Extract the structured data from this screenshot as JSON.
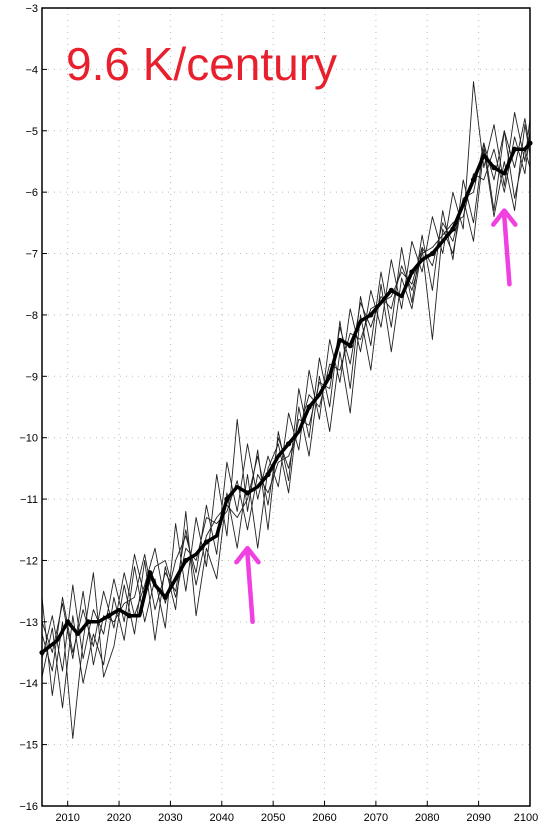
{
  "chart_data": {
    "type": "line",
    "annotation": "9.6 K/century",
    "xlim": [
      2005,
      2100
    ],
    "ylim": [
      -16,
      -3
    ],
    "x_ticks": [
      2010,
      2020,
      2030,
      2040,
      2050,
      2060,
      2070,
      2080,
      2090,
      2100
    ],
    "x_tick_labels": [
      "2010",
      "2020",
      "2030",
      "2040",
      "2050",
      "2060",
      "2070",
      "2080",
      "2090",
      "2100"
    ],
    "y_ticks": [
      -16,
      -15,
      -14,
      -13,
      -12,
      -11,
      -10,
      -9,
      -8,
      -7,
      -6,
      -5,
      -4,
      -3
    ],
    "y_tick_labels": [
      "−16",
      "−15",
      "−14",
      "−13",
      "−12",
      "−11",
      "−10",
      "−9",
      "−8",
      "−7",
      "−6",
      "−5",
      "−4",
      "−3"
    ],
    "grid": true,
    "ensemble_mean": {
      "x": [
        2005,
        2008,
        2010,
        2012,
        2014,
        2016,
        2018,
        2020,
        2022,
        2024,
        2026,
        2027,
        2029,
        2031,
        2033,
        2035,
        2037,
        2039,
        2041,
        2043,
        2045,
        2047,
        2049,
        2051,
        2053,
        2055,
        2057,
        2059,
        2061,
        2063,
        2065,
        2067,
        2069,
        2071,
        2073,
        2075,
        2077,
        2079,
        2081,
        2083,
        2085,
        2087,
        2089,
        2091,
        2093,
        2095,
        2097,
        2099,
        2100
      ],
      "y": [
        -13.5,
        -13.3,
        -13.0,
        -13.2,
        -13.0,
        -13.0,
        -12.9,
        -12.8,
        -12.9,
        -12.9,
        -12.2,
        -12.4,
        -12.6,
        -12.3,
        -12.0,
        -11.9,
        -11.7,
        -11.6,
        -11.0,
        -10.8,
        -10.9,
        -10.8,
        -10.6,
        -10.3,
        -10.1,
        -9.9,
        -9.5,
        -9.3,
        -9.0,
        -8.4,
        -8.5,
        -8.1,
        -8.0,
        -7.8,
        -7.6,
        -7.7,
        -7.3,
        -7.1,
        -7.0,
        -6.8,
        -6.6,
        -6.2,
        -5.8,
        -5.4,
        -5.6,
        -5.7,
        -5.3,
        -5.3,
        -5.2
      ]
    },
    "ensemble_members": [
      {
        "x": [
          2005,
          2007,
          2009,
          2011,
          2013,
          2015,
          2017,
          2019,
          2021,
          2023,
          2025,
          2027,
          2029,
          2031,
          2033,
          2035,
          2037,
          2039,
          2041,
          2043,
          2045,
          2047,
          2049,
          2051,
          2053,
          2055,
          2057,
          2059,
          2061,
          2063,
          2065,
          2067,
          2069,
          2071,
          2073,
          2075,
          2077,
          2079,
          2081,
          2083,
          2085,
          2087,
          2089,
          2091,
          2093,
          2095,
          2097,
          2099,
          2100
        ],
        "y": [
          -13.2,
          -13.8,
          -12.6,
          -13.5,
          -12.8,
          -13.4,
          -12.5,
          -13.1,
          -12.2,
          -12.9,
          -12.4,
          -11.8,
          -12.7,
          -12.0,
          -11.6,
          -12.2,
          -11.1,
          -11.9,
          -10.4,
          -11.2,
          -10.1,
          -11.0,
          -10.3,
          -10.8,
          -9.6,
          -10.2,
          -8.9,
          -9.7,
          -8.4,
          -9.1,
          -7.9,
          -8.6,
          -7.6,
          -8.2,
          -7.1,
          -7.9,
          -6.8,
          -7.3,
          -6.4,
          -7.0,
          -6.0,
          -6.6,
          -4.2,
          -5.6,
          -4.9,
          -5.9,
          -4.7,
          -5.5,
          -4.8
        ]
      },
      {
        "x": [
          2005,
          2007,
          2009,
          2011,
          2013,
          2015,
          2017,
          2019,
          2021,
          2023,
          2025,
          2027,
          2029,
          2031,
          2033,
          2035,
          2037,
          2039,
          2041,
          2043,
          2045,
          2047,
          2049,
          2051,
          2053,
          2055,
          2057,
          2059,
          2061,
          2063,
          2065,
          2067,
          2069,
          2071,
          2073,
          2075,
          2077,
          2079,
          2081,
          2083,
          2085,
          2087,
          2089,
          2091,
          2093,
          2095,
          2097,
          2099,
          2100
        ],
        "y": [
          -13.9,
          -13.1,
          -14.4,
          -12.9,
          -14.0,
          -13.2,
          -13.7,
          -12.6,
          -13.3,
          -12.1,
          -13.0,
          -12.3,
          -13.1,
          -11.4,
          -12.5,
          -11.3,
          -12.1,
          -10.6,
          -11.6,
          -9.7,
          -11.2,
          -10.2,
          -11.5,
          -9.9,
          -10.7,
          -9.2,
          -10.0,
          -8.7,
          -9.5,
          -8.1,
          -9.2,
          -7.7,
          -8.5,
          -7.3,
          -8.2,
          -6.9,
          -7.8,
          -6.7,
          -7.6,
          -6.3,
          -7.1,
          -5.8,
          -6.5,
          -5.2,
          -6.3,
          -5.0,
          -6.1,
          -5.3,
          -5.6
        ]
      },
      {
        "x": [
          2005,
          2007,
          2009,
          2011,
          2013,
          2015,
          2017,
          2019,
          2021,
          2023,
          2025,
          2027,
          2029,
          2031,
          2033,
          2035,
          2037,
          2039,
          2041,
          2043,
          2045,
          2047,
          2049,
          2051,
          2053,
          2055,
          2057,
          2059,
          2061,
          2063,
          2065,
          2067,
          2069,
          2071,
          2073,
          2075,
          2077,
          2079,
          2081,
          2083,
          2085,
          2087,
          2089,
          2091,
          2093,
          2095,
          2097,
          2099,
          2100
        ],
        "y": [
          -12.6,
          -14.2,
          -13.0,
          -14.9,
          -13.3,
          -12.2,
          -13.9,
          -13.4,
          -12.4,
          -13.2,
          -12.0,
          -13.3,
          -12.1,
          -12.8,
          -11.2,
          -12.9,
          -11.8,
          -12.3,
          -10.9,
          -11.8,
          -10.6,
          -11.8,
          -10.5,
          -10.1,
          -10.9,
          -9.5,
          -10.3,
          -9.0,
          -9.9,
          -8.6,
          -9.6,
          -8.0,
          -8.9,
          -7.5,
          -8.6,
          -7.4,
          -7.9,
          -6.9,
          -8.4,
          -6.6,
          -7.0,
          -6.1,
          -6.8,
          -5.3,
          -6.4,
          -5.5,
          -6.3,
          -4.9,
          -5.4
        ]
      },
      {
        "x": [
          2005,
          2007,
          2009,
          2011,
          2013,
          2015,
          2017,
          2019,
          2021,
          2023,
          2025,
          2027,
          2029,
          2031,
          2033,
          2035,
          2037,
          2039,
          2041,
          2043,
          2045,
          2047,
          2049,
          2051,
          2053,
          2055,
          2057,
          2059,
          2061,
          2063,
          2065,
          2067,
          2069,
          2071,
          2073,
          2075,
          2077,
          2079,
          2081,
          2083,
          2085,
          2087,
          2089,
          2091,
          2093,
          2095,
          2097,
          2099,
          2100
        ],
        "y": [
          -13.6,
          -12.9,
          -13.8,
          -12.4,
          -13.6,
          -12.8,
          -13.2,
          -12.3,
          -13.0,
          -11.9,
          -12.6,
          -12.1,
          -12.0,
          -12.6,
          -11.8,
          -12.0,
          -11.3,
          -11.4,
          -11.2,
          -10.7,
          -11.5,
          -10.6,
          -10.9,
          -10.4,
          -10.3,
          -9.9,
          -9.3,
          -9.5,
          -8.8,
          -8.9,
          -8.3,
          -8.4,
          -7.9,
          -7.8,
          -7.7,
          -7.3,
          -7.5,
          -6.9,
          -7.2,
          -6.5,
          -6.8,
          -6.1,
          -6.0,
          -5.2,
          -5.8,
          -5.0,
          -5.6,
          -4.8,
          -5.3
        ]
      },
      {
        "x": [
          2005,
          2007,
          2009,
          2011,
          2013,
          2015,
          2017,
          2019,
          2021,
          2023,
          2025,
          2027,
          2029,
          2031,
          2033,
          2035,
          2037,
          2039,
          2041,
          2043,
          2045,
          2047,
          2049,
          2051,
          2053,
          2055,
          2057,
          2059,
          2061,
          2063,
          2065,
          2067,
          2069,
          2071,
          2073,
          2075,
          2077,
          2079,
          2081,
          2083,
          2085,
          2087,
          2089,
          2091,
          2093,
          2095,
          2097,
          2099,
          2100
        ],
        "y": [
          -13.0,
          -13.5,
          -12.7,
          -13.6,
          -12.5,
          -13.7,
          -12.9,
          -13.0,
          -12.7,
          -12.6,
          -11.9,
          -12.8,
          -12.2,
          -12.5,
          -11.5,
          -12.4,
          -11.6,
          -11.3,
          -11.1,
          -11.3,
          -11.0,
          -10.3,
          -11.1,
          -10.0,
          -10.5,
          -9.7,
          -9.8,
          -9.1,
          -9.2,
          -8.2,
          -8.8,
          -7.8,
          -8.2,
          -7.7,
          -7.9,
          -7.2,
          -7.6,
          -7.0,
          -6.9,
          -6.7,
          -6.5,
          -6.4,
          -5.7,
          -5.8,
          -5.3,
          -6.0,
          -5.1,
          -5.7,
          -5.0
        ]
      }
    ],
    "arrows": [
      {
        "from": [
          2046,
          -13.0
        ],
        "to": [
          2045,
          -11.8
        ]
      },
      {
        "from": [
          2096,
          -7.5
        ],
        "to": [
          2095,
          -6.3
        ]
      }
    ],
    "colors": {
      "mean": "#000000",
      "members": "#222222",
      "annotation": "#e8202e",
      "arrow": "#f040e0",
      "grid": "#bbbbbb"
    }
  }
}
